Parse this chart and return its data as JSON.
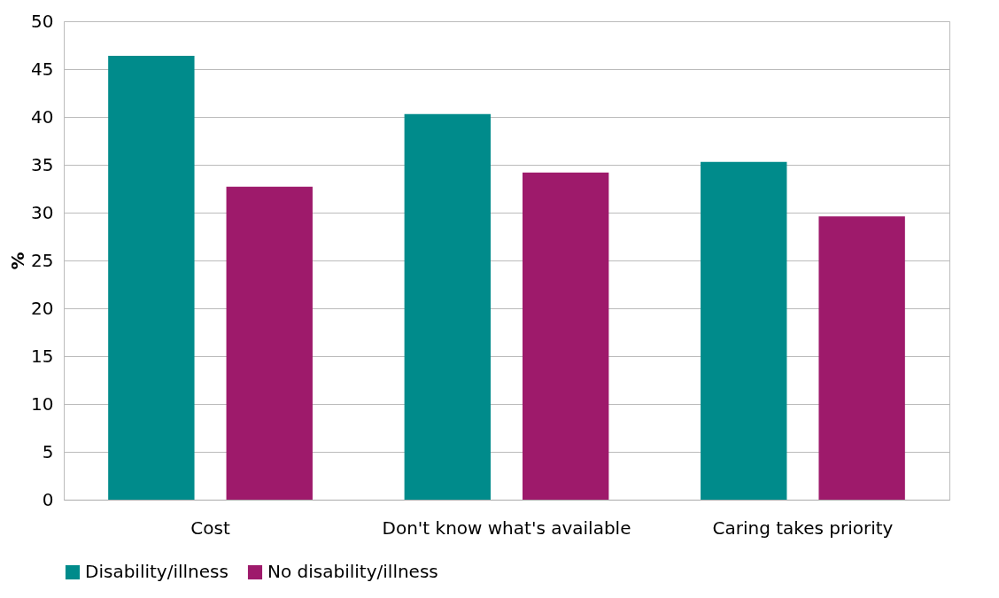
{
  "chart_data": {
    "type": "bar",
    "ylabel": "%",
    "categories": [
      "Cost",
      "Don't know what's available",
      "Caring takes priority"
    ],
    "series": [
      {
        "name": "Disability/illness",
        "color": "#008b8b",
        "values": [
          46.4,
          40.3,
          35.3
        ]
      },
      {
        "name": "No disability/illness",
        "color": "#9e1a6b",
        "values": [
          32.7,
          34.2,
          29.6
        ]
      }
    ],
    "ylim": [
      0,
      50
    ],
    "yticks": [
      0,
      5,
      10,
      15,
      20,
      25,
      30,
      35,
      40,
      45,
      50
    ],
    "grid": "y",
    "legend": "bottom"
  }
}
